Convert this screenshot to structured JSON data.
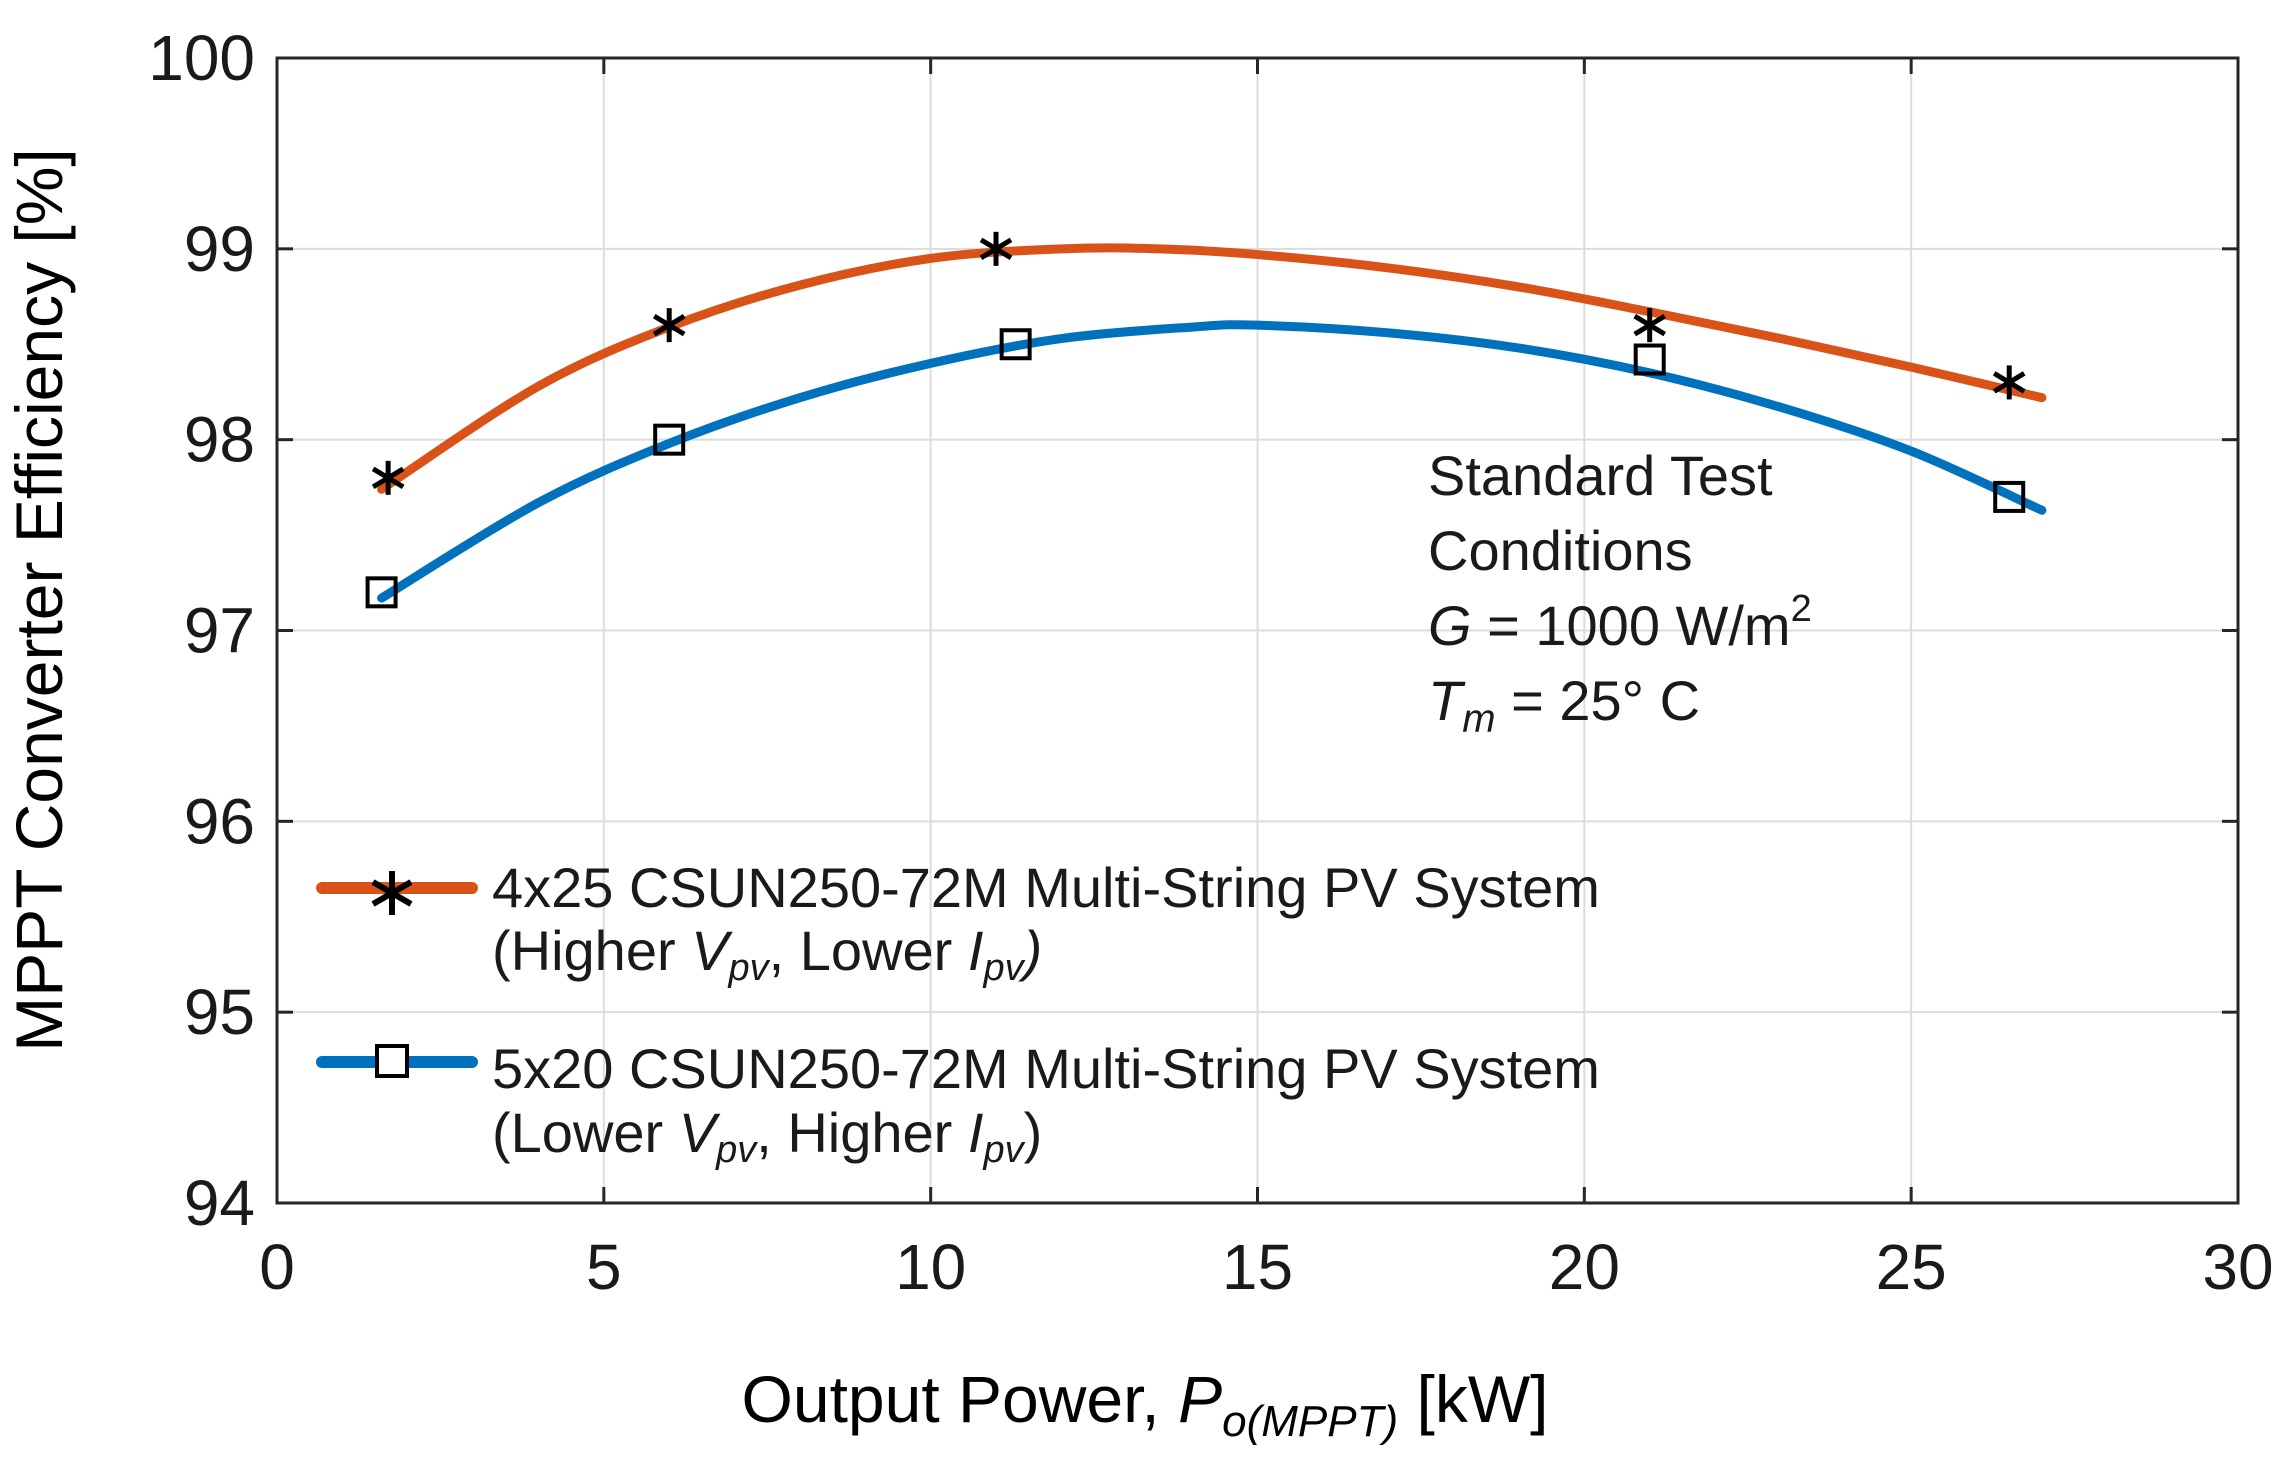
{
  "chart_data": {
    "type": "line",
    "xlabel_main": "Output Power, ",
    "xlabel_var": "P",
    "xlabel_sub": "o(MPPT)",
    "xlabel_unit": " [kW]",
    "ylabel": "MPPT Converter Efficiency [%]",
    "xlim": [
      0,
      30
    ],
    "ylim": [
      94,
      100
    ],
    "xticks": [
      "0",
      "5",
      "10",
      "15",
      "20",
      "25",
      "30"
    ],
    "yticks": [
      "94",
      "95",
      "96",
      "97",
      "98",
      "99",
      "100"
    ],
    "grid": true,
    "legend_position": "lower-left",
    "series": [
      {
        "name": "4x25 CSUN250-72M Multi-String PV System",
        "name_line2_pre": "(Higher ",
        "name_line2_v": "V",
        "name_line2_vsub": "pv",
        "name_line2_mid": ", Lower ",
        "name_line2_i": "I",
        "name_line2_isub": "pv",
        "name_line2_post": ")",
        "color": "#D95319",
        "marker": "asterisk",
        "x": [
          1.7,
          6.0,
          11.0,
          21.0,
          26.5
        ],
        "y": [
          97.8,
          98.6,
          99.0,
          98.6,
          98.3
        ],
        "fit_x": [
          1.6,
          4,
          6,
          8,
          10,
          12,
          13.5,
          15,
          17,
          19,
          21,
          23,
          25,
          27
        ],
        "fit_y": [
          97.74,
          98.28,
          98.59,
          98.81,
          98.95,
          99.0,
          99.0,
          98.97,
          98.9,
          98.8,
          98.67,
          98.53,
          98.38,
          98.22
        ]
      },
      {
        "name": "5x20 CSUN250-72M Multi-String PV System",
        "name_line2_pre": "(Lower ",
        "name_line2_v": "V",
        "name_line2_vsub": "pv",
        "name_line2_mid": ", Higher ",
        "name_line2_i": "I",
        "name_line2_isub": "pv",
        "name_line2_post": ")",
        "color": "#0072BD",
        "marker": "square",
        "x": [
          1.6,
          6.0,
          11.3,
          21.0,
          26.5
        ],
        "y": [
          97.2,
          98.0,
          98.5,
          98.42,
          97.7
        ],
        "fit_x": [
          1.6,
          4,
          6,
          8,
          10,
          12,
          14,
          15,
          17,
          19,
          21,
          23,
          25,
          27
        ],
        "fit_y": [
          97.17,
          97.67,
          97.98,
          98.22,
          98.4,
          98.53,
          98.59,
          98.6,
          98.56,
          98.48,
          98.35,
          98.17,
          97.94,
          97.63
        ]
      }
    ],
    "annotation": {
      "line1": "Standard Test",
      "line2": "Conditions",
      "line3_var": "G",
      "line3_rest": " = 1000 W/m",
      "line3_sup": "2",
      "line4_var": "T",
      "line4_sub": "m",
      "line4_rest": " = 25° C"
    }
  }
}
